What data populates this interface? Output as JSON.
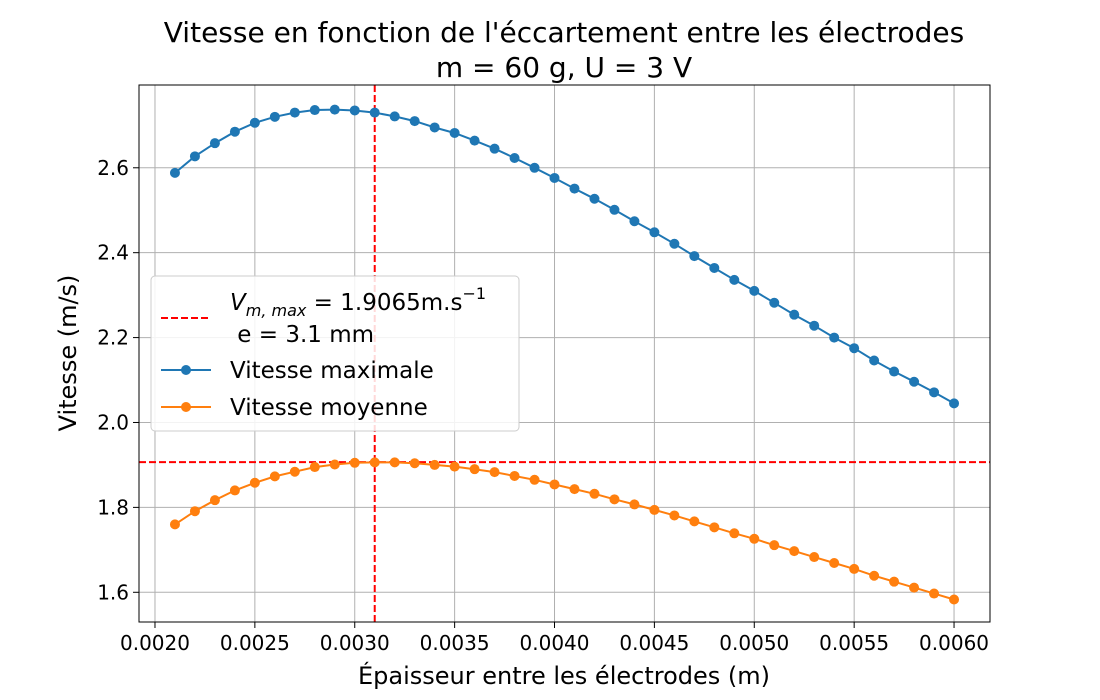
{
  "chart_data": {
    "type": "line",
    "title": "Vitesse en fonction de l'éccartement entre les électrodes",
    "subtitle": "m = 60 g, U = 3 V",
    "xlabel": "Épaisseur entre les électrodes (m)",
    "ylabel": "Vitesse (m/s)",
    "xlim": [
      0.00192,
      0.00618
    ],
    "ylim": [
      1.53,
      2.795
    ],
    "xticks": [
      0.002,
      0.0025,
      0.003,
      0.0035,
      0.004,
      0.0045,
      0.005,
      0.0055,
      0.006
    ],
    "xtick_labels": [
      "0.0020",
      "0.0025",
      "0.0030",
      "0.0035",
      "0.0040",
      "0.0045",
      "0.0050",
      "0.0055",
      "0.0060"
    ],
    "yticks": [
      1.6,
      1.8,
      2.0,
      2.2,
      2.4,
      2.6
    ],
    "ytick_labels": [
      "1.6",
      "1.8",
      "2.0",
      "2.2",
      "2.4",
      "2.6"
    ],
    "grid": true,
    "legend_position": "center-left",
    "x": [
      0.0021,
      0.0022,
      0.0023,
      0.0024,
      0.0025,
      0.0026,
      0.0027,
      0.0028,
      0.0029,
      0.003,
      0.0031,
      0.0032,
      0.0033,
      0.0034,
      0.0035,
      0.0036,
      0.0037,
      0.0038,
      0.0039,
      0.004,
      0.0041,
      0.0042,
      0.0043,
      0.0044,
      0.0045,
      0.0046,
      0.0047,
      0.0048,
      0.0049,
      0.005,
      0.0051,
      0.0052,
      0.0053,
      0.0054,
      0.0055,
      0.0056,
      0.0057,
      0.0058,
      0.0059,
      0.006
    ],
    "series": [
      {
        "name": "Vitesse maximale",
        "color": "#1f77b4",
        "values": [
          2.588,
          2.627,
          2.658,
          2.685,
          2.706,
          2.72,
          2.73,
          2.736,
          2.737,
          2.735,
          2.73,
          2.721,
          2.71,
          2.695,
          2.682,
          2.664,
          2.645,
          2.623,
          2.6,
          2.576,
          2.551,
          2.527,
          2.501,
          2.474,
          2.448,
          2.421,
          2.392,
          2.364,
          2.336,
          2.31,
          2.282,
          2.254,
          2.228,
          2.2,
          2.175,
          2.146,
          2.12,
          2.096,
          2.071,
          2.045
        ]
      },
      {
        "name": "Vitesse moyenne",
        "color": "#ff7f0e",
        "values": [
          1.76,
          1.791,
          1.817,
          1.84,
          1.858,
          1.873,
          1.884,
          1.895,
          1.901,
          1.905,
          1.906,
          1.906,
          1.904,
          1.9,
          1.896,
          1.89,
          1.883,
          1.874,
          1.865,
          1.854,
          1.843,
          1.832,
          1.819,
          1.807,
          1.794,
          1.781,
          1.767,
          1.753,
          1.739,
          1.726,
          1.711,
          1.697,
          1.683,
          1.669,
          1.655,
          1.639,
          1.625,
          1.611,
          1.597,
          1.583
        ]
      }
    ],
    "reference_lines": [
      {
        "orientation": "vertical",
        "value": 0.0031,
        "color": "#ff0000",
        "style": "dashed"
      },
      {
        "orientation": "horizontal",
        "value": 1.9065,
        "color": "#ff0000",
        "style": "dashed"
      }
    ],
    "legend": {
      "entries": [
        {
          "kind": "dashed-line",
          "color": "#ff0000",
          "math_base": "V",
          "math_sub": "m, max",
          "math_rest": " = 1.9065m.s",
          "math_sup": "−1",
          "line2": " e = 3.1 mm"
        },
        {
          "kind": "line-marker",
          "color": "#1f77b4",
          "label": "Vitesse maximale"
        },
        {
          "kind": "line-marker",
          "color": "#ff7f0e",
          "label": "Vitesse moyenne"
        }
      ]
    }
  }
}
